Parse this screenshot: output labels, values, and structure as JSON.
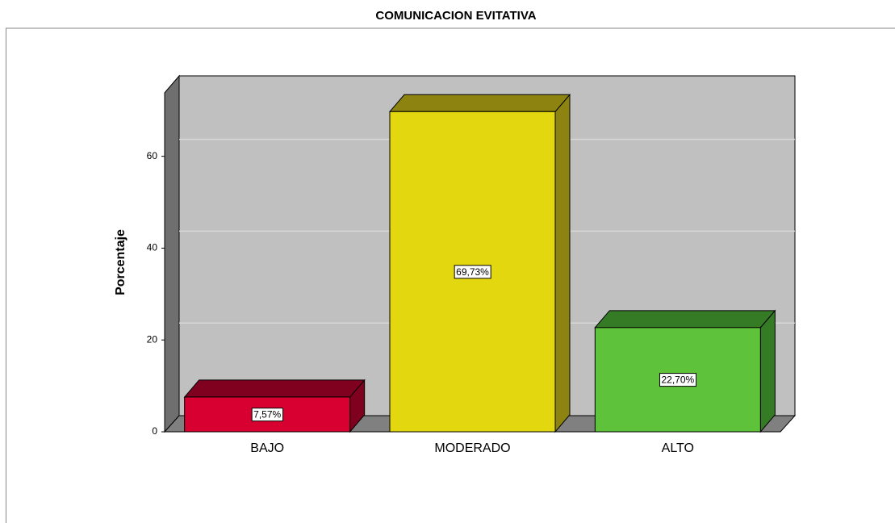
{
  "chart_data": {
    "type": "bar3d",
    "title": "COMUNICACION EVITATIVA",
    "y_label": "Porcentaje",
    "categories": [
      "BAJO",
      "MODERADO",
      "ALTO"
    ],
    "values": [
      7.57,
      69.73,
      22.7
    ],
    "value_labels": [
      "7,57%",
      "69,73%",
      "22,70%"
    ],
    "colors": [
      "#d80030",
      "#e3d70f",
      "#5ec23a"
    ],
    "side_colors": [
      "#800020",
      "#8c8310",
      "#357a25"
    ],
    "ylim": [
      0,
      74
    ],
    "yticks": [
      0,
      20,
      40,
      60
    ],
    "grid": true
  }
}
